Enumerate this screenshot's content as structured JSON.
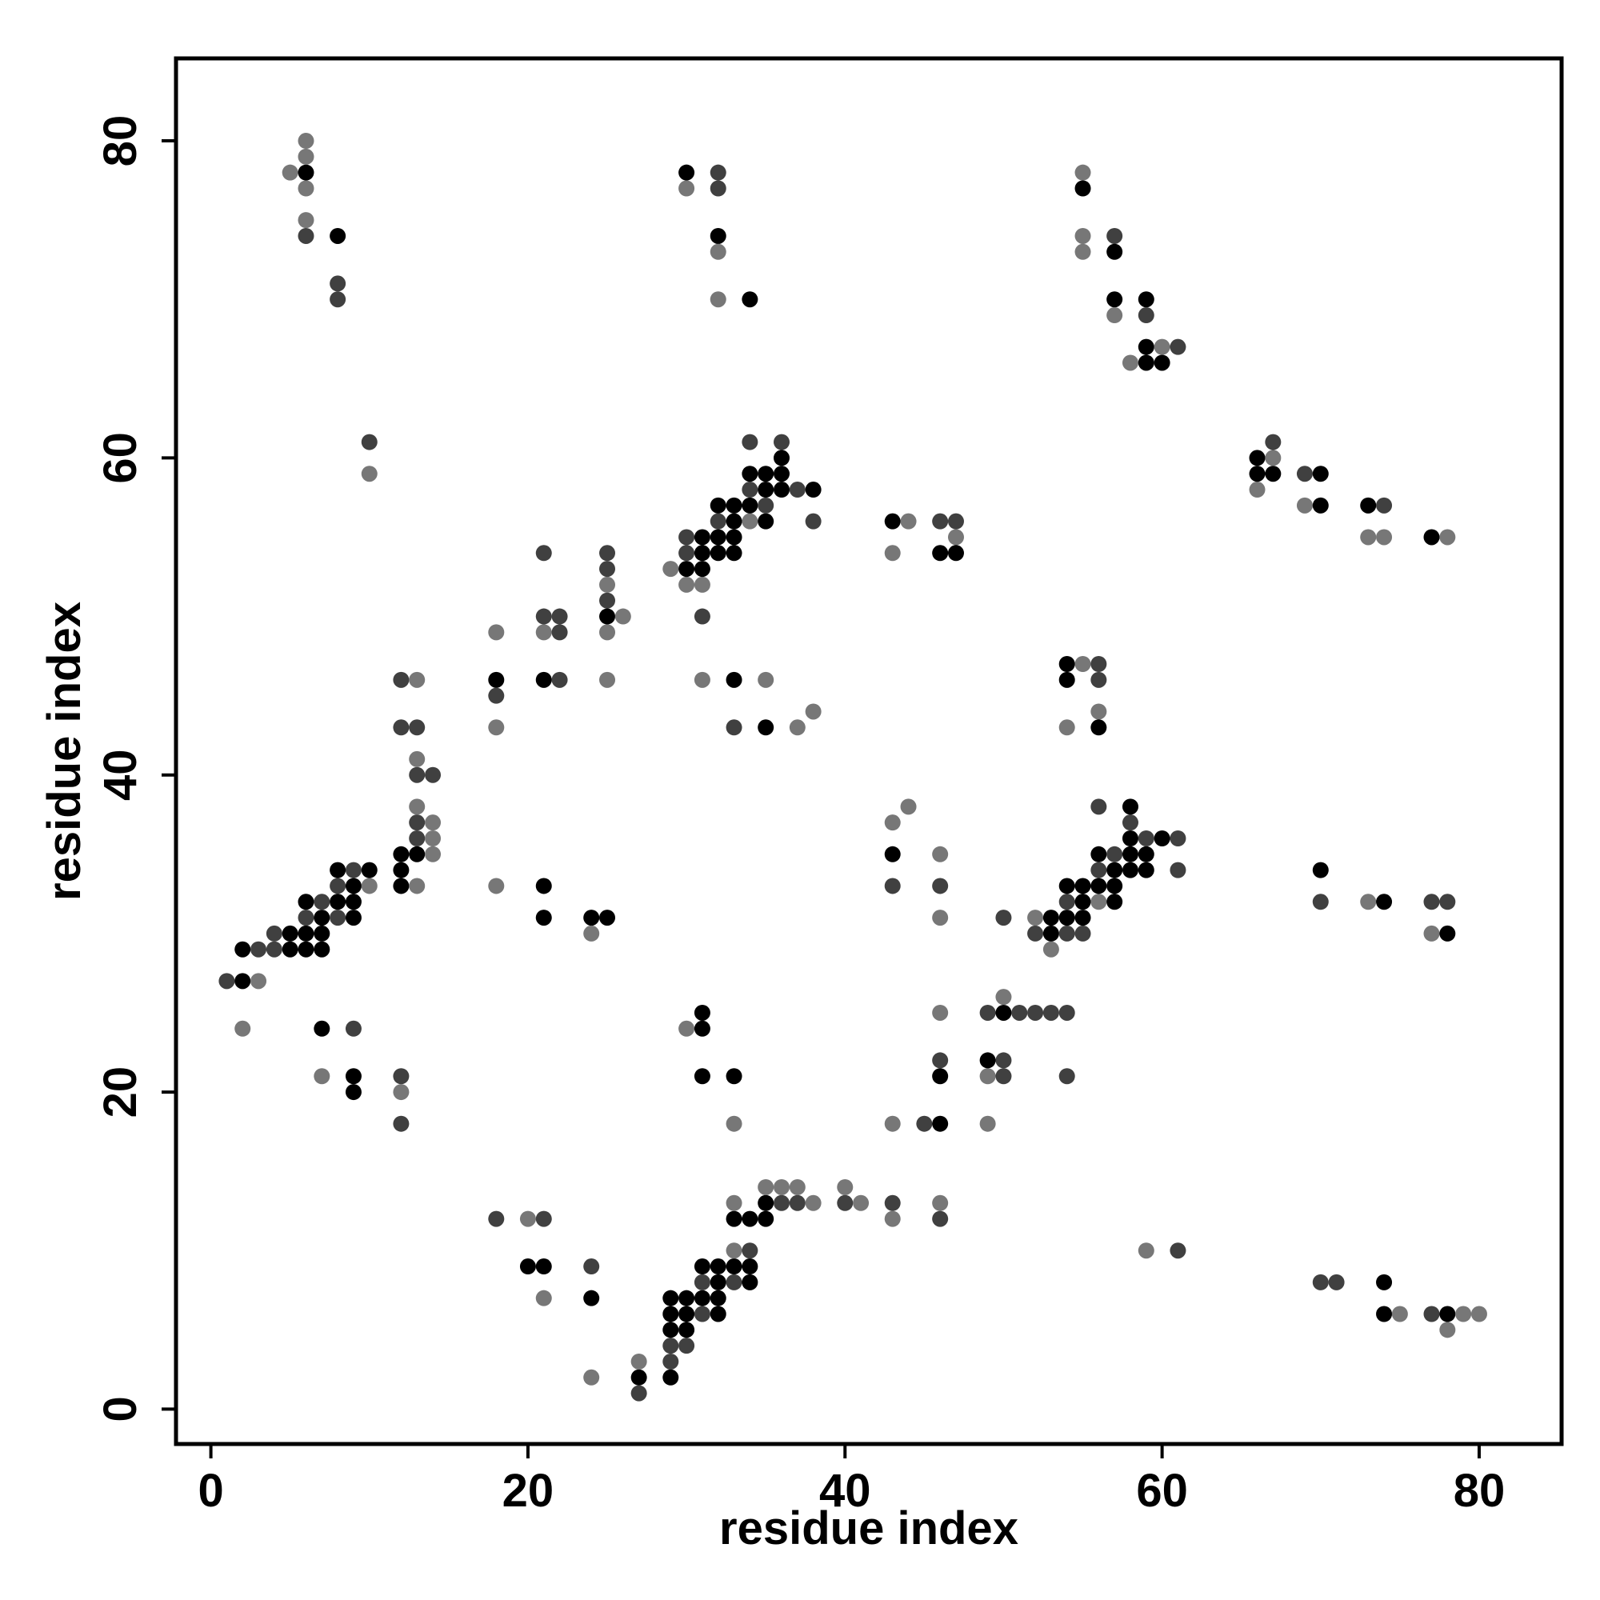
{
  "chart_data": {
    "type": "scatter",
    "title": "",
    "xlabel": "residue index",
    "ylabel": "residue index",
    "xlim": [
      -2.2,
      85.2
    ],
    "ylim": [
      -2.2,
      85.2
    ],
    "xticks": [
      0,
      20,
      40,
      60,
      80
    ],
    "yticks": [
      0,
      20,
      40,
      60,
      80
    ],
    "grid": false,
    "legend": "none",
    "shade_colors": {
      "1": "#000000",
      "2": "#404040",
      "3": "#777777"
    },
    "points": [
      [
        1,
        27,
        2
      ],
      [
        2,
        27,
        1
      ],
      [
        3,
        27,
        3
      ],
      [
        2,
        24,
        3
      ],
      [
        2,
        29,
        1
      ],
      [
        3,
        29,
        2
      ],
      [
        4,
        29,
        2
      ],
      [
        4,
        30,
        2
      ],
      [
        5,
        29,
        1
      ],
      [
        5,
        30,
        1
      ],
      [
        6,
        29,
        1
      ],
      [
        6,
        30,
        1
      ],
      [
        6,
        31,
        2
      ],
      [
        6,
        32,
        1
      ],
      [
        7,
        29,
        1
      ],
      [
        7,
        30,
        1
      ],
      [
        7,
        31,
        1
      ],
      [
        7,
        32,
        2
      ],
      [
        8,
        31,
        2
      ],
      [
        8,
        32,
        1
      ],
      [
        8,
        33,
        2
      ],
      [
        8,
        34,
        1
      ],
      [
        9,
        31,
        1
      ],
      [
        9,
        32,
        1
      ],
      [
        9,
        33,
        1
      ],
      [
        9,
        34,
        2
      ],
      [
        10,
        33,
        3
      ],
      [
        10,
        34,
        1
      ],
      [
        12,
        33,
        1
      ],
      [
        12,
        34,
        1
      ],
      [
        12,
        35,
        1
      ],
      [
        13,
        33,
        3
      ],
      [
        13,
        35,
        1
      ],
      [
        13,
        36,
        2
      ],
      [
        13,
        37,
        2
      ],
      [
        13,
        38,
        3
      ],
      [
        13,
        40,
        2
      ],
      [
        13,
        41,
        3
      ],
      [
        14,
        35,
        3
      ],
      [
        14,
        36,
        3
      ],
      [
        14,
        37,
        3
      ],
      [
        14,
        40,
        2
      ],
      [
        12,
        43,
        2
      ],
      [
        13,
        43,
        2
      ],
      [
        12,
        46,
        2
      ],
      [
        13,
        46,
        3
      ],
      [
        7,
        24,
        1
      ],
      [
        9,
        24,
        2
      ],
      [
        7,
        21,
        3
      ],
      [
        9,
        21,
        1
      ],
      [
        9,
        20,
        1
      ],
      [
        12,
        21,
        2
      ],
      [
        12,
        20,
        3
      ],
      [
        12,
        18,
        2
      ],
      [
        5,
        78,
        3
      ],
      [
        6,
        78,
        1
      ],
      [
        6,
        79,
        3
      ],
      [
        6,
        80,
        3
      ],
      [
        6,
        77,
        3
      ],
      [
        6,
        75,
        3
      ],
      [
        6,
        74,
        2
      ],
      [
        8,
        74,
        1
      ],
      [
        8,
        71,
        2
      ],
      [
        8,
        70,
        2
      ],
      [
        10,
        61,
        2
      ],
      [
        10,
        59,
        3
      ],
      [
        18,
        46,
        1
      ],
      [
        18,
        45,
        2
      ],
      [
        18,
        49,
        3
      ],
      [
        18,
        43,
        3
      ],
      [
        18,
        33,
        3
      ],
      [
        21,
        33,
        1
      ],
      [
        21,
        31,
        1
      ],
      [
        24,
        31,
        1
      ],
      [
        25,
        31,
        1
      ],
      [
        24,
        30,
        3
      ],
      [
        21,
        54,
        2
      ],
      [
        21,
        50,
        2
      ],
      [
        22,
        50,
        2
      ],
      [
        21,
        49,
        3
      ],
      [
        22,
        49,
        2
      ],
      [
        21,
        46,
        1
      ],
      [
        22,
        46,
        2
      ],
      [
        25,
        54,
        2
      ],
      [
        25,
        53,
        2
      ],
      [
        25,
        52,
        3
      ],
      [
        25,
        51,
        2
      ],
      [
        25,
        50,
        1
      ],
      [
        26,
        50,
        3
      ],
      [
        25,
        49,
        3
      ],
      [
        25,
        46,
        3
      ],
      [
        29,
        53,
        3
      ],
      [
        30,
        52,
        3
      ],
      [
        30,
        53,
        1
      ],
      [
        30,
        54,
        2
      ],
      [
        30,
        55,
        2
      ],
      [
        31,
        52,
        3
      ],
      [
        31,
        53,
        1
      ],
      [
        31,
        54,
        1
      ],
      [
        31,
        55,
        1
      ],
      [
        31,
        50,
        2
      ],
      [
        32,
        54,
        1
      ],
      [
        32,
        55,
        1
      ],
      [
        32,
        56,
        2
      ],
      [
        32,
        57,
        1
      ],
      [
        33,
        54,
        1
      ],
      [
        33,
        55,
        1
      ],
      [
        33,
        56,
        1
      ],
      [
        33,
        57,
        1
      ],
      [
        34,
        56,
        3
      ],
      [
        34,
        57,
        1
      ],
      [
        34,
        58,
        2
      ],
      [
        34,
        59,
        1
      ],
      [
        34,
        61,
        2
      ],
      [
        35,
        56,
        1
      ],
      [
        35,
        57,
        2
      ],
      [
        35,
        58,
        1
      ],
      [
        35,
        59,
        1
      ],
      [
        36,
        58,
        1
      ],
      [
        36,
        59,
        1
      ],
      [
        36,
        60,
        1
      ],
      [
        36,
        61,
        2
      ],
      [
        37,
        58,
        2
      ],
      [
        38,
        58,
        1
      ],
      [
        38,
        56,
        2
      ],
      [
        31,
        46,
        3
      ],
      [
        33,
        46,
        1
      ],
      [
        35,
        46,
        3
      ],
      [
        33,
        43,
        2
      ],
      [
        35,
        43,
        1
      ],
      [
        37,
        43,
        3
      ],
      [
        38,
        44,
        3
      ],
      [
        30,
        78,
        1
      ],
      [
        30,
        77,
        3
      ],
      [
        32,
        78,
        2
      ],
      [
        32,
        77,
        2
      ],
      [
        32,
        74,
        1
      ],
      [
        32,
        73,
        3
      ],
      [
        32,
        70,
        3
      ],
      [
        34,
        70,
        1
      ],
      [
        43,
        56,
        1
      ],
      [
        44,
        56,
        3
      ],
      [
        43,
        54,
        3
      ],
      [
        46,
        56,
        2
      ],
      [
        47,
        56,
        2
      ],
      [
        47,
        55,
        3
      ],
      [
        46,
        54,
        1
      ],
      [
        47,
        54,
        1
      ],
      [
        43,
        37,
        3
      ],
      [
        44,
        38,
        3
      ],
      [
        43,
        35,
        1
      ],
      [
        43,
        33,
        2
      ],
      [
        46,
        35,
        3
      ],
      [
        46,
        33,
        2
      ],
      [
        46,
        31,
        3
      ],
      [
        18,
        12,
        2
      ],
      [
        20,
        12,
        3
      ],
      [
        21,
        12,
        2
      ],
      [
        20,
        9,
        1
      ],
      [
        21,
        9,
        1
      ],
      [
        21,
        7,
        3
      ],
      [
        24,
        9,
        2
      ],
      [
        24,
        7,
        1
      ],
      [
        24,
        2,
        3
      ],
      [
        27,
        1,
        2
      ],
      [
        27,
        2,
        1
      ],
      [
        27,
        3,
        3
      ],
      [
        29,
        2,
        1
      ],
      [
        29,
        3,
        2
      ],
      [
        29,
        4,
        2
      ],
      [
        29,
        5,
        1
      ],
      [
        29,
        6,
        1
      ],
      [
        29,
        7,
        1
      ],
      [
        30,
        4,
        2
      ],
      [
        30,
        5,
        1
      ],
      [
        30,
        6,
        1
      ],
      [
        30,
        7,
        1
      ],
      [
        31,
        6,
        2
      ],
      [
        31,
        7,
        1
      ],
      [
        31,
        8,
        2
      ],
      [
        31,
        9,
        1
      ],
      [
        32,
        6,
        1
      ],
      [
        32,
        7,
        1
      ],
      [
        32,
        8,
        1
      ],
      [
        32,
        9,
        1
      ],
      [
        33,
        8,
        2
      ],
      [
        33,
        9,
        1
      ],
      [
        33,
        10,
        3
      ],
      [
        33,
        12,
        1
      ],
      [
        33,
        13,
        3
      ],
      [
        34,
        8,
        1
      ],
      [
        34,
        9,
        1
      ],
      [
        34,
        10,
        2
      ],
      [
        34,
        12,
        1
      ],
      [
        35,
        12,
        1
      ],
      [
        35,
        13,
        1
      ],
      [
        35,
        14,
        3
      ],
      [
        36,
        13,
        2
      ],
      [
        36,
        14,
        3
      ],
      [
        37,
        13,
        2
      ],
      [
        37,
        14,
        3
      ],
      [
        38,
        13,
        3
      ],
      [
        40,
        13,
        2
      ],
      [
        40,
        14,
        3
      ],
      [
        41,
        13,
        3
      ],
      [
        43,
        13,
        2
      ],
      [
        43,
        12,
        3
      ],
      [
        46,
        13,
        3
      ],
      [
        46,
        12,
        2
      ],
      [
        30,
        24,
        3
      ],
      [
        31,
        24,
        1
      ],
      [
        31,
        25,
        1
      ],
      [
        31,
        21,
        1
      ],
      [
        33,
        21,
        1
      ],
      [
        33,
        18,
        3
      ],
      [
        43,
        18,
        3
      ],
      [
        45,
        18,
        2
      ],
      [
        46,
        18,
        1
      ],
      [
        46,
        21,
        1
      ],
      [
        46,
        22,
        2
      ],
      [
        46,
        25,
        3
      ],
      [
        49,
        18,
        3
      ],
      [
        49,
        21,
        3
      ],
      [
        49,
        22,
        1
      ],
      [
        50,
        21,
        2
      ],
      [
        50,
        22,
        2
      ],
      [
        49,
        25,
        2
      ],
      [
        50,
        25,
        1
      ],
      [
        50,
        26,
        3
      ],
      [
        51,
        25,
        2
      ],
      [
        52,
        25,
        2
      ],
      [
        53,
        25,
        2
      ],
      [
        54,
        25,
        2
      ],
      [
        54,
        21,
        2
      ],
      [
        50,
        31,
        2
      ],
      [
        52,
        30,
        2
      ],
      [
        52,
        31,
        3
      ],
      [
        53,
        29,
        3
      ],
      [
        53,
        30,
        1
      ],
      [
        53,
        31,
        1
      ],
      [
        54,
        30,
        2
      ],
      [
        54,
        31,
        1
      ],
      [
        54,
        32,
        2
      ],
      [
        54,
        33,
        1
      ],
      [
        55,
        30,
        2
      ],
      [
        55,
        31,
        1
      ],
      [
        55,
        32,
        1
      ],
      [
        55,
        33,
        1
      ],
      [
        56,
        32,
        3
      ],
      [
        56,
        33,
        1
      ],
      [
        56,
        34,
        2
      ],
      [
        56,
        35,
        1
      ],
      [
        56,
        38,
        2
      ],
      [
        57,
        32,
        1
      ],
      [
        57,
        33,
        1
      ],
      [
        57,
        34,
        1
      ],
      [
        57,
        35,
        2
      ],
      [
        58,
        34,
        1
      ],
      [
        58,
        35,
        1
      ],
      [
        58,
        36,
        1
      ],
      [
        58,
        37,
        2
      ],
      [
        58,
        38,
        1
      ],
      [
        59,
        34,
        1
      ],
      [
        59,
        35,
        1
      ],
      [
        59,
        36,
        2
      ],
      [
        60,
        36,
        1
      ],
      [
        61,
        36,
        2
      ],
      [
        61,
        34,
        2
      ],
      [
        54,
        47,
        1
      ],
      [
        54,
        46,
        1
      ],
      [
        55,
        47,
        3
      ],
      [
        56,
        47,
        2
      ],
      [
        56,
        46,
        2
      ],
      [
        56,
        44,
        3
      ],
      [
        54,
        43,
        3
      ],
      [
        56,
        43,
        1
      ],
      [
        55,
        78,
        3
      ],
      [
        55,
        77,
        1
      ],
      [
        55,
        74,
        3
      ],
      [
        55,
        73,
        3
      ],
      [
        57,
        74,
        2
      ],
      [
        57,
        73,
        1
      ],
      [
        57,
        70,
        1
      ],
      [
        57,
        69,
        3
      ],
      [
        59,
        70,
        1
      ],
      [
        59,
        69,
        2
      ],
      [
        58,
        66,
        3
      ],
      [
        59,
        66,
        1
      ],
      [
        59,
        67,
        1
      ],
      [
        60,
        66,
        1
      ],
      [
        60,
        67,
        3
      ],
      [
        61,
        67,
        2
      ],
      [
        66,
        58,
        3
      ],
      [
        66,
        59,
        1
      ],
      [
        66,
        60,
        1
      ],
      [
        67,
        59,
        1
      ],
      [
        67,
        60,
        3
      ],
      [
        67,
        61,
        2
      ],
      [
        69,
        59,
        2
      ],
      [
        69,
        57,
        3
      ],
      [
        70,
        59,
        1
      ],
      [
        70,
        57,
        1
      ],
      [
        73,
        57,
        1
      ],
      [
        73,
        55,
        3
      ],
      [
        74,
        57,
        2
      ],
      [
        74,
        55,
        3
      ],
      [
        77,
        55,
        1
      ],
      [
        78,
        55,
        3
      ],
      [
        70,
        34,
        1
      ],
      [
        70,
        32,
        2
      ],
      [
        73,
        32,
        3
      ],
      [
        74,
        32,
        1
      ],
      [
        77,
        32,
        2
      ],
      [
        78,
        32,
        2
      ],
      [
        77,
        30,
        3
      ],
      [
        78,
        30,
        1
      ],
      [
        59,
        10,
        3
      ],
      [
        61,
        10,
        2
      ],
      [
        70,
        8,
        2
      ],
      [
        71,
        8,
        2
      ],
      [
        74,
        8,
        1
      ],
      [
        74,
        6,
        1
      ],
      [
        75,
        6,
        3
      ],
      [
        77,
        6,
        2
      ],
      [
        78,
        6,
        1
      ],
      [
        79,
        6,
        3
      ],
      [
        80,
        6,
        3
      ],
      [
        78,
        5,
        3
      ]
    ]
  }
}
